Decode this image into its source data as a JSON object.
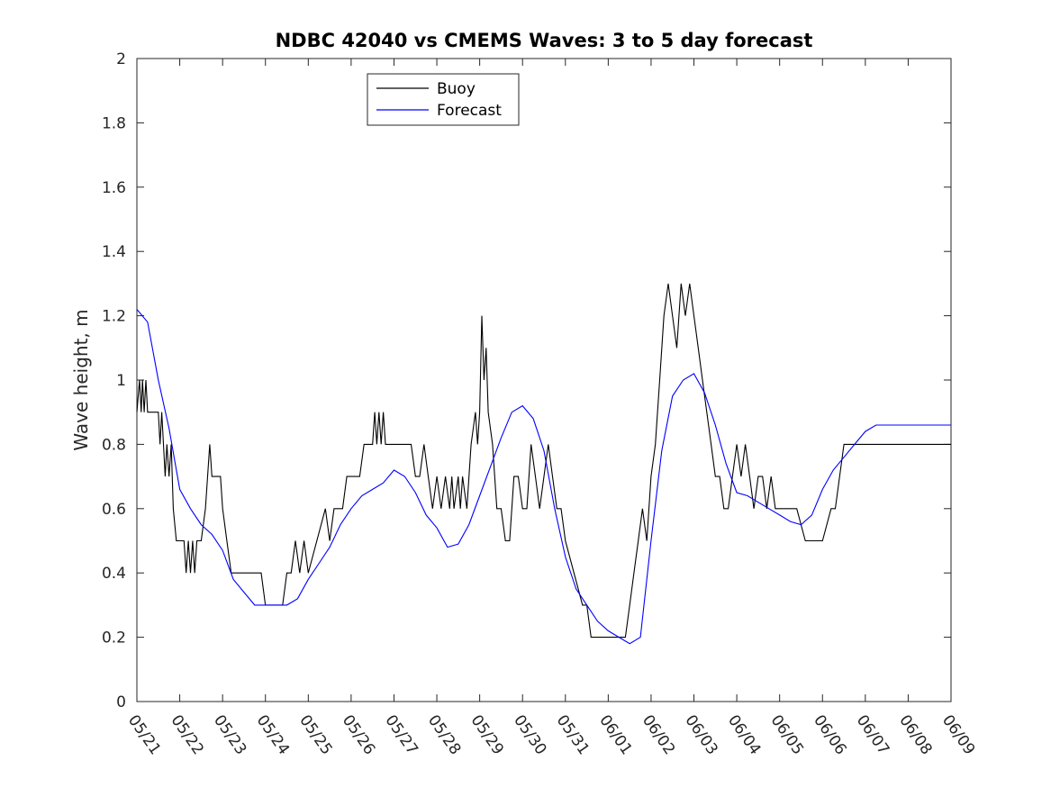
{
  "chart_data": {
    "type": "line",
    "title": "NDBC 42040 vs CMEMS Waves: 3 to 5 day forecast",
    "xlabel": "",
    "ylabel": "Wave height, m",
    "xlim": [
      "05/21",
      "06/09"
    ],
    "ylim": [
      0,
      2
    ],
    "x_tick_labels": [
      "05/21",
      "05/22",
      "05/23",
      "05/24",
      "05/25",
      "05/26",
      "05/27",
      "05/28",
      "05/29",
      "05/30",
      "05/31",
      "06/01",
      "06/02",
      "06/03",
      "06/04",
      "06/05",
      "06/06",
      "06/07",
      "06/08",
      "06/09"
    ],
    "y_ticks": [
      0,
      0.2,
      0.4,
      0.6,
      0.8,
      1,
      1.2,
      1.4,
      1.6,
      1.8,
      2
    ],
    "y_tick_labels": [
      "0",
      "0.2",
      "0.4",
      "0.6",
      "0.8",
      "1",
      "1.2",
      "1.4",
      "1.6",
      "1.8",
      "2"
    ],
    "grid": false,
    "legend_position": "top-center",
    "colors": {
      "buoy": "#000000",
      "forecast": "#0000ff"
    },
    "series": [
      {
        "name": "Buoy",
        "points": [
          [
            0.0,
            0.9
          ],
          [
            0.06,
            1.0
          ],
          [
            0.1,
            0.9
          ],
          [
            0.13,
            1.0
          ],
          [
            0.17,
            0.9
          ],
          [
            0.21,
            1.0
          ],
          [
            0.25,
            0.9
          ],
          [
            0.35,
            0.9
          ],
          [
            0.5,
            0.9
          ],
          [
            0.54,
            0.8
          ],
          [
            0.58,
            0.9
          ],
          [
            0.62,
            0.8
          ],
          [
            0.66,
            0.7
          ],
          [
            0.7,
            0.8
          ],
          [
            0.75,
            0.7
          ],
          [
            0.8,
            0.8
          ],
          [
            0.85,
            0.6
          ],
          [
            0.92,
            0.5
          ],
          [
            1.0,
            0.5
          ],
          [
            1.1,
            0.5
          ],
          [
            1.15,
            0.4
          ],
          [
            1.2,
            0.5
          ],
          [
            1.25,
            0.4
          ],
          [
            1.3,
            0.5
          ],
          [
            1.35,
            0.4
          ],
          [
            1.4,
            0.5
          ],
          [
            1.5,
            0.5
          ],
          [
            1.6,
            0.6
          ],
          [
            1.65,
            0.7
          ],
          [
            1.7,
            0.8
          ],
          [
            1.75,
            0.7
          ],
          [
            1.85,
            0.7
          ],
          [
            1.95,
            0.7
          ],
          [
            2.0,
            0.6
          ],
          [
            2.1,
            0.5
          ],
          [
            2.2,
            0.4
          ],
          [
            2.4,
            0.4
          ],
          [
            2.6,
            0.4
          ],
          [
            2.9,
            0.4
          ],
          [
            3.0,
            0.3
          ],
          [
            3.2,
            0.3
          ],
          [
            3.4,
            0.3
          ],
          [
            3.5,
            0.4
          ],
          [
            3.6,
            0.4
          ],
          [
            3.7,
            0.5
          ],
          [
            3.8,
            0.4
          ],
          [
            3.9,
            0.5
          ],
          [
            4.0,
            0.4
          ],
          [
            4.2,
            0.5
          ],
          [
            4.4,
            0.6
          ],
          [
            4.5,
            0.5
          ],
          [
            4.6,
            0.6
          ],
          [
            4.8,
            0.6
          ],
          [
            4.9,
            0.7
          ],
          [
            5.0,
            0.7
          ],
          [
            5.2,
            0.7
          ],
          [
            5.3,
            0.8
          ],
          [
            5.5,
            0.8
          ],
          [
            5.55,
            0.9
          ],
          [
            5.6,
            0.8
          ],
          [
            5.65,
            0.9
          ],
          [
            5.7,
            0.8
          ],
          [
            5.75,
            0.9
          ],
          [
            5.8,
            0.8
          ],
          [
            6.0,
            0.8
          ],
          [
            6.2,
            0.8
          ],
          [
            6.4,
            0.8
          ],
          [
            6.5,
            0.7
          ],
          [
            6.6,
            0.7
          ],
          [
            6.7,
            0.8
          ],
          [
            6.8,
            0.7
          ],
          [
            6.9,
            0.6
          ],
          [
            7.0,
            0.7
          ],
          [
            7.1,
            0.6
          ],
          [
            7.2,
            0.7
          ],
          [
            7.3,
            0.6
          ],
          [
            7.35,
            0.7
          ],
          [
            7.4,
            0.6
          ],
          [
            7.5,
            0.7
          ],
          [
            7.55,
            0.6
          ],
          [
            7.6,
            0.7
          ],
          [
            7.7,
            0.6
          ],
          [
            7.8,
            0.8
          ],
          [
            7.9,
            0.9
          ],
          [
            7.95,
            0.8
          ],
          [
            8.0,
            0.9
          ],
          [
            8.05,
            1.2
          ],
          [
            8.1,
            1.0
          ],
          [
            8.15,
            1.1
          ],
          [
            8.2,
            0.9
          ],
          [
            8.3,
            0.8
          ],
          [
            8.4,
            0.6
          ],
          [
            8.5,
            0.6
          ],
          [
            8.6,
            0.5
          ],
          [
            8.7,
            0.5
          ],
          [
            8.8,
            0.7
          ],
          [
            8.9,
            0.7
          ],
          [
            9.0,
            0.6
          ],
          [
            9.1,
            0.6
          ],
          [
            9.2,
            0.8
          ],
          [
            9.3,
            0.7
          ],
          [
            9.4,
            0.6
          ],
          [
            9.5,
            0.7
          ],
          [
            9.6,
            0.8
          ],
          [
            9.7,
            0.7
          ],
          [
            9.8,
            0.6
          ],
          [
            9.9,
            0.6
          ],
          [
            10.0,
            0.5
          ],
          [
            10.2,
            0.4
          ],
          [
            10.4,
            0.3
          ],
          [
            10.5,
            0.3
          ],
          [
            10.6,
            0.2
          ],
          [
            10.8,
            0.2
          ],
          [
            11.0,
            0.2
          ],
          [
            11.2,
            0.2
          ],
          [
            11.4,
            0.2
          ],
          [
            11.5,
            0.3
          ],
          [
            11.6,
            0.4
          ],
          [
            11.7,
            0.5
          ],
          [
            11.8,
            0.6
          ],
          [
            11.9,
            0.5
          ],
          [
            12.0,
            0.7
          ],
          [
            12.1,
            0.8
          ],
          [
            12.2,
            1.0
          ],
          [
            12.3,
            1.2
          ],
          [
            12.4,
            1.3
          ],
          [
            12.5,
            1.2
          ],
          [
            12.6,
            1.1
          ],
          [
            12.7,
            1.3
          ],
          [
            12.8,
            1.2
          ],
          [
            12.9,
            1.3
          ],
          [
            13.0,
            1.2
          ],
          [
            13.1,
            1.1
          ],
          [
            13.2,
            1.0
          ],
          [
            13.3,
            0.9
          ],
          [
            13.4,
            0.8
          ],
          [
            13.5,
            0.7
          ],
          [
            13.6,
            0.7
          ],
          [
            13.7,
            0.6
          ],
          [
            13.8,
            0.6
          ],
          [
            13.9,
            0.7
          ],
          [
            14.0,
            0.8
          ],
          [
            14.1,
            0.7
          ],
          [
            14.2,
            0.8
          ],
          [
            14.3,
            0.7
          ],
          [
            14.4,
            0.6
          ],
          [
            14.5,
            0.7
          ],
          [
            14.6,
            0.7
          ],
          [
            14.7,
            0.6
          ],
          [
            14.8,
            0.7
          ],
          [
            14.9,
            0.6
          ],
          [
            15.0,
            0.6
          ],
          [
            15.2,
            0.6
          ],
          [
            15.4,
            0.6
          ],
          [
            15.6,
            0.5
          ],
          [
            15.8,
            0.5
          ],
          [
            16.0,
            0.5
          ],
          [
            16.2,
            0.6
          ],
          [
            16.3,
            0.6
          ],
          [
            16.4,
            0.7
          ],
          [
            16.5,
            0.8
          ],
          [
            16.6,
            0.8
          ],
          [
            16.7,
            0.8
          ],
          [
            16.8,
            0.8
          ],
          [
            16.9,
            0.8
          ],
          [
            17.0,
            0.8
          ],
          [
            17.2,
            0.8
          ],
          [
            17.4,
            0.8
          ],
          [
            17.6,
            0.8
          ],
          [
            17.8,
            0.8
          ],
          [
            18.0,
            0.8
          ],
          [
            18.2,
            0.8
          ],
          [
            18.4,
            0.8
          ],
          [
            18.6,
            0.8
          ],
          [
            18.8,
            0.8
          ],
          [
            19.0,
            0.8
          ]
        ]
      },
      {
        "name": "Forecast",
        "points": [
          [
            0.0,
            1.22
          ],
          [
            0.25,
            1.18
          ],
          [
            0.5,
            1.0
          ],
          [
            0.75,
            0.85
          ],
          [
            1.0,
            0.66
          ],
          [
            1.25,
            0.6
          ],
          [
            1.5,
            0.55
          ],
          [
            1.75,
            0.52
          ],
          [
            2.0,
            0.47
          ],
          [
            2.25,
            0.38
          ],
          [
            2.5,
            0.34
          ],
          [
            2.75,
            0.3
          ],
          [
            3.0,
            0.3
          ],
          [
            3.25,
            0.3
          ],
          [
            3.5,
            0.3
          ],
          [
            3.75,
            0.32
          ],
          [
            4.0,
            0.38
          ],
          [
            4.25,
            0.43
          ],
          [
            4.5,
            0.48
          ],
          [
            4.75,
            0.55
          ],
          [
            5.0,
            0.6
          ],
          [
            5.25,
            0.64
          ],
          [
            5.5,
            0.66
          ],
          [
            5.75,
            0.68
          ],
          [
            6.0,
            0.72
          ],
          [
            6.25,
            0.7
          ],
          [
            6.5,
            0.65
          ],
          [
            6.75,
            0.58
          ],
          [
            7.0,
            0.54
          ],
          [
            7.25,
            0.48
          ],
          [
            7.5,
            0.49
          ],
          [
            7.75,
            0.55
          ],
          [
            8.0,
            0.64
          ],
          [
            8.25,
            0.73
          ],
          [
            8.5,
            0.82
          ],
          [
            8.75,
            0.9
          ],
          [
            9.0,
            0.92
          ],
          [
            9.25,
            0.88
          ],
          [
            9.5,
            0.78
          ],
          [
            9.75,
            0.6
          ],
          [
            10.0,
            0.45
          ],
          [
            10.25,
            0.35
          ],
          [
            10.5,
            0.3
          ],
          [
            10.75,
            0.25
          ],
          [
            11.0,
            0.22
          ],
          [
            11.25,
            0.2
          ],
          [
            11.5,
            0.18
          ],
          [
            11.75,
            0.2
          ],
          [
            12.0,
            0.5
          ],
          [
            12.25,
            0.78
          ],
          [
            12.5,
            0.95
          ],
          [
            12.75,
            1.0
          ],
          [
            13.0,
            1.02
          ],
          [
            13.25,
            0.96
          ],
          [
            13.5,
            0.86
          ],
          [
            13.75,
            0.74
          ],
          [
            14.0,
            0.65
          ],
          [
            14.25,
            0.64
          ],
          [
            14.5,
            0.62
          ],
          [
            14.75,
            0.6
          ],
          [
            15.0,
            0.58
          ],
          [
            15.25,
            0.56
          ],
          [
            15.5,
            0.55
          ],
          [
            15.75,
            0.58
          ],
          [
            16.0,
            0.66
          ],
          [
            16.25,
            0.72
          ],
          [
            16.5,
            0.76
          ],
          [
            16.75,
            0.8
          ],
          [
            17.0,
            0.84
          ],
          [
            17.25,
            0.86
          ],
          [
            17.5,
            0.86
          ],
          [
            17.75,
            0.86
          ],
          [
            18.0,
            0.86
          ],
          [
            18.25,
            0.86
          ],
          [
            18.5,
            0.86
          ],
          [
            18.75,
            0.86
          ],
          [
            19.0,
            0.86
          ]
        ]
      }
    ]
  },
  "legend": {
    "entries": [
      {
        "label": "Buoy",
        "color": "#000000"
      },
      {
        "label": "Forecast",
        "color": "#0000ff"
      }
    ]
  }
}
